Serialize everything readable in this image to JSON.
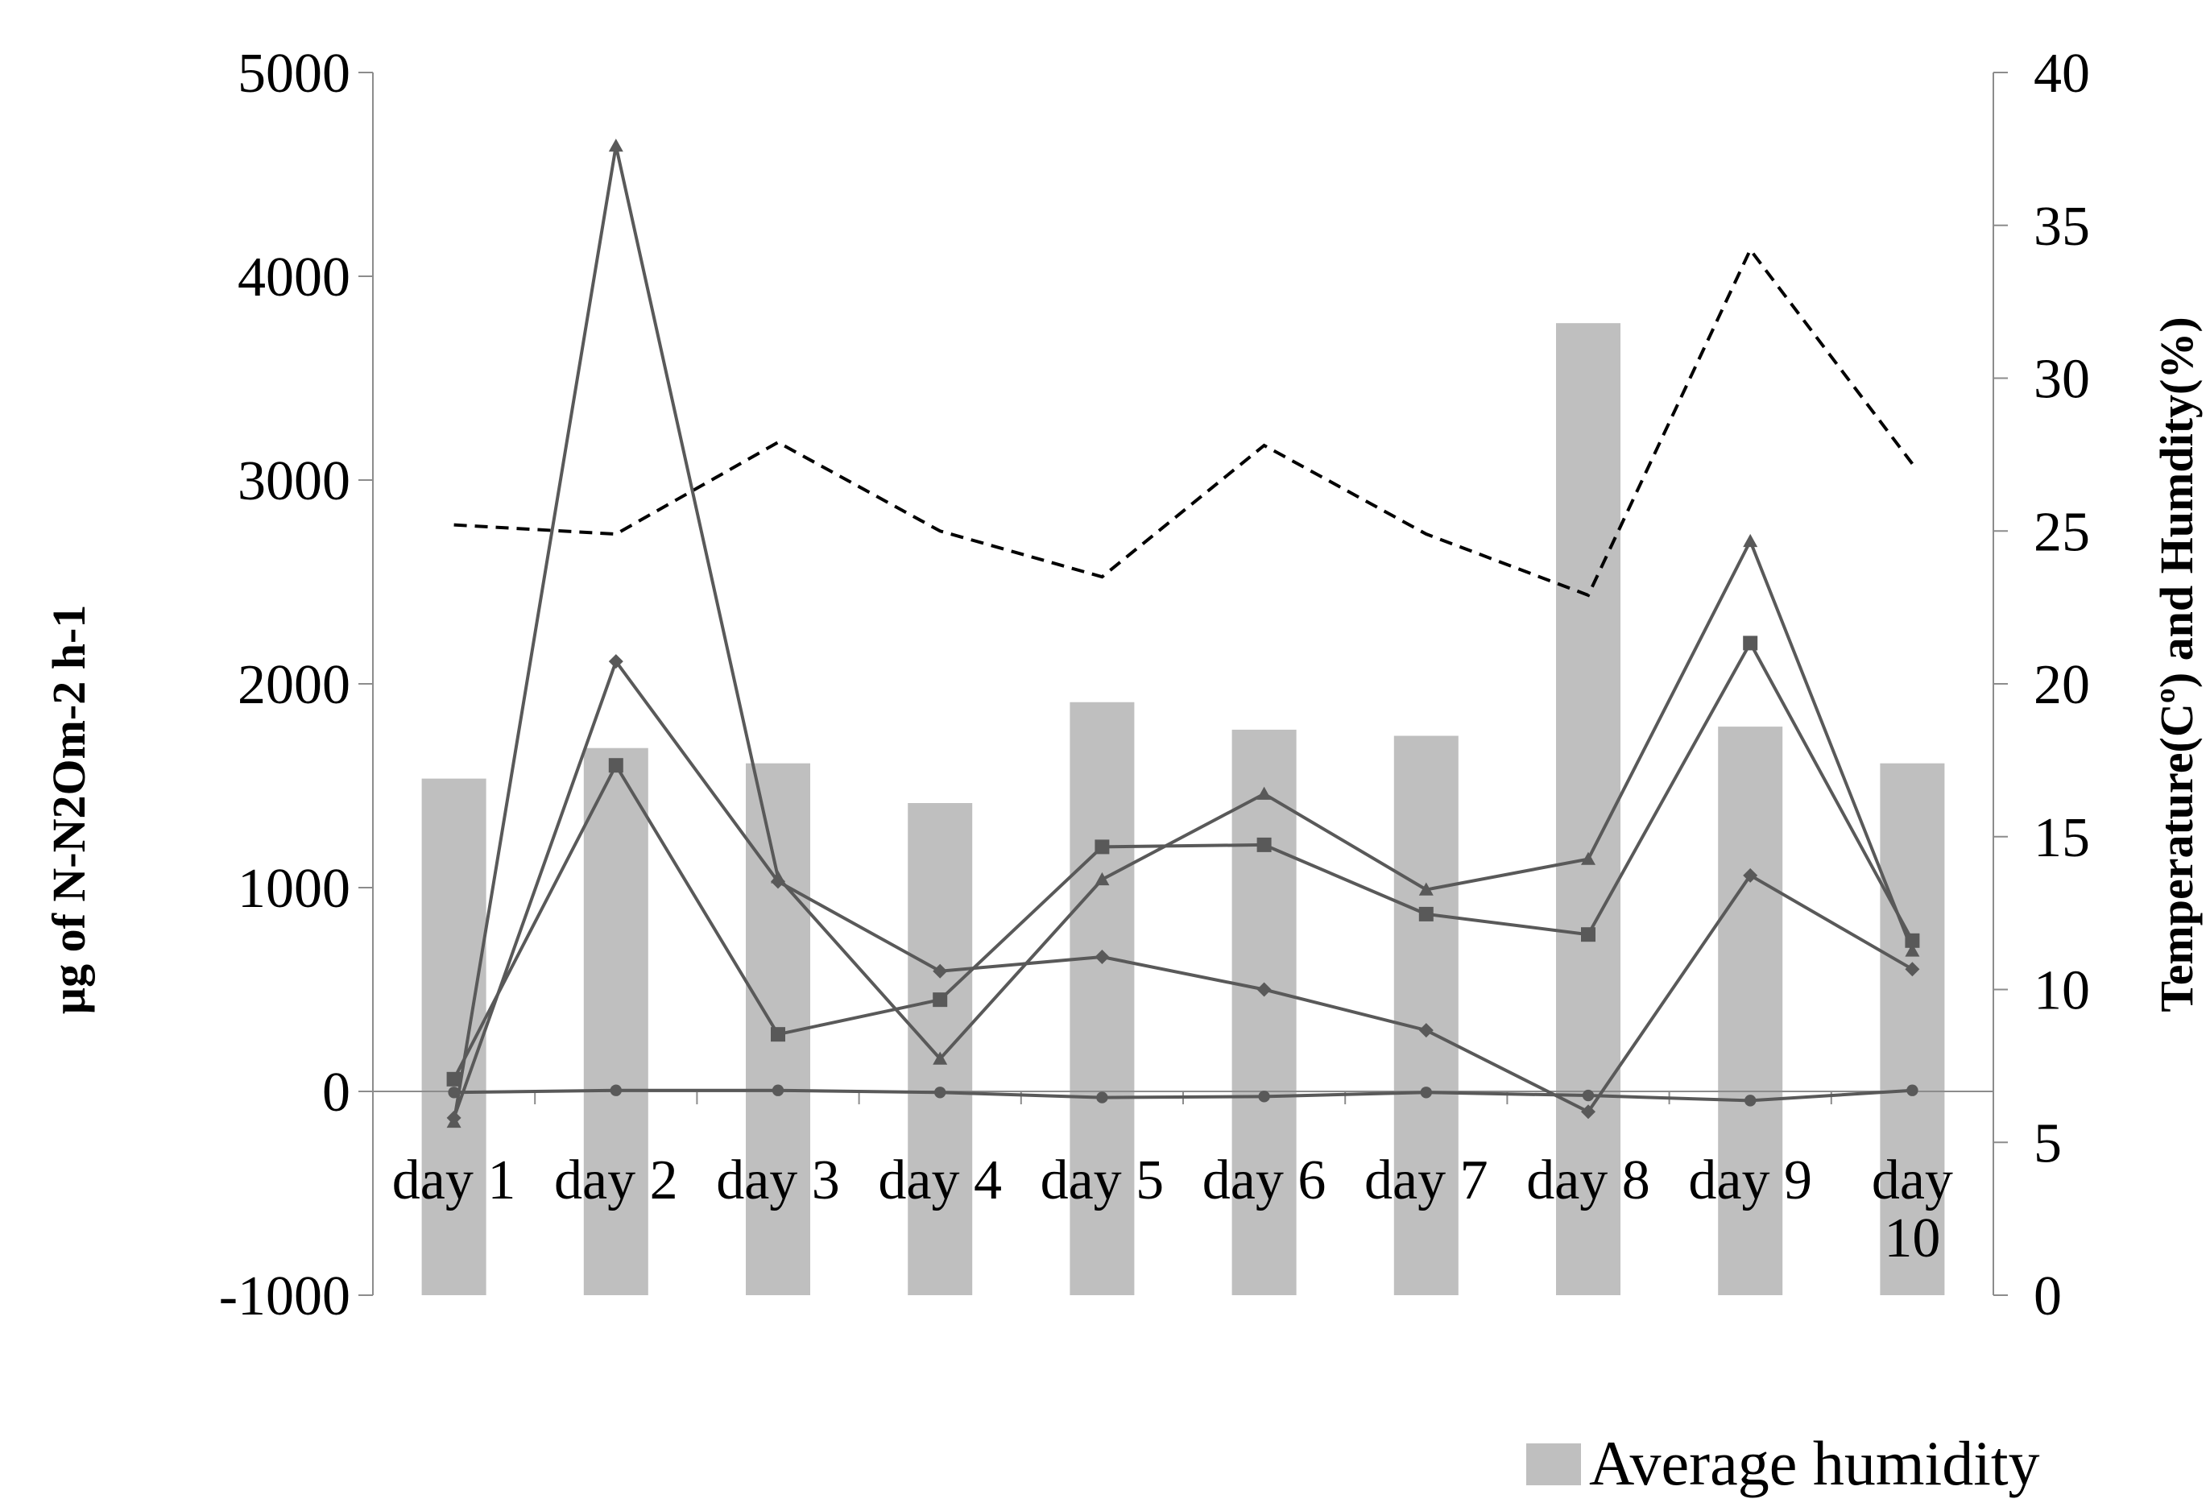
{
  "chart_data": {
    "type": "bar",
    "categories": [
      "day 1",
      "day 2",
      "day 3",
      "day 4",
      "day 5",
      "day 6",
      "day 7",
      "day 8",
      "day 9",
      "day 10"
    ],
    "y_left": {
      "label": "µg of N-N2Om-2 h-1",
      "ylim": [
        -1000,
        5000
      ],
      "ticks": [
        "-1000",
        "0",
        "1000",
        "2000",
        "3000",
        "4000",
        "5000"
      ]
    },
    "y_right": {
      "label": "Temperature(Cº) and Humdity(%)",
      "ylim": [
        0,
        40
      ],
      "ticks": [
        "0",
        "5",
        "10",
        "15",
        "20",
        "25",
        "30",
        "35",
        "40"
      ]
    },
    "bars": [
      {
        "name": "Average humidity",
        "axis": "right",
        "color": "#bfbfbf",
        "values": [
          16.9,
          17.9,
          17.4,
          16.1,
          19.4,
          18.5,
          18.3,
          31.8,
          18.6,
          17.4
        ]
      }
    ],
    "series": [
      {
        "axis": "right",
        "style": "dashed",
        "marker": "none",
        "color": "#000000",
        "values": [
          25.2,
          24.9,
          27.9,
          25.0,
          23.5,
          27.8,
          24.9,
          22.9,
          34.2,
          27.2
        ]
      },
      {
        "axis": "left",
        "style": "solid",
        "marker": "triangle",
        "color": "#595959",
        "values": [
          -150,
          4640,
          1050,
          160,
          1040,
          1460,
          990,
          1140,
          2700,
          690
        ]
      },
      {
        "axis": "left",
        "style": "solid",
        "marker": "square",
        "color": "#595959",
        "values": [
          60,
          1600,
          280,
          450,
          1200,
          1210,
          870,
          770,
          2200,
          740
        ]
      },
      {
        "axis": "left",
        "style": "solid",
        "marker": "diamond",
        "color": "#595959",
        "values": [
          -130,
          2110,
          1030,
          590,
          660,
          500,
          300,
          -100,
          1060,
          600
        ]
      },
      {
        "axis": "left",
        "style": "solid",
        "marker": "circle",
        "color": "#595959",
        "values": [
          -5,
          5,
          5,
          -5,
          -30,
          -25,
          -5,
          -20,
          -45,
          5
        ]
      }
    ],
    "legend": {
      "position": "bottom-right",
      "entries": [
        "Average humidity"
      ]
    },
    "grid": false
  }
}
